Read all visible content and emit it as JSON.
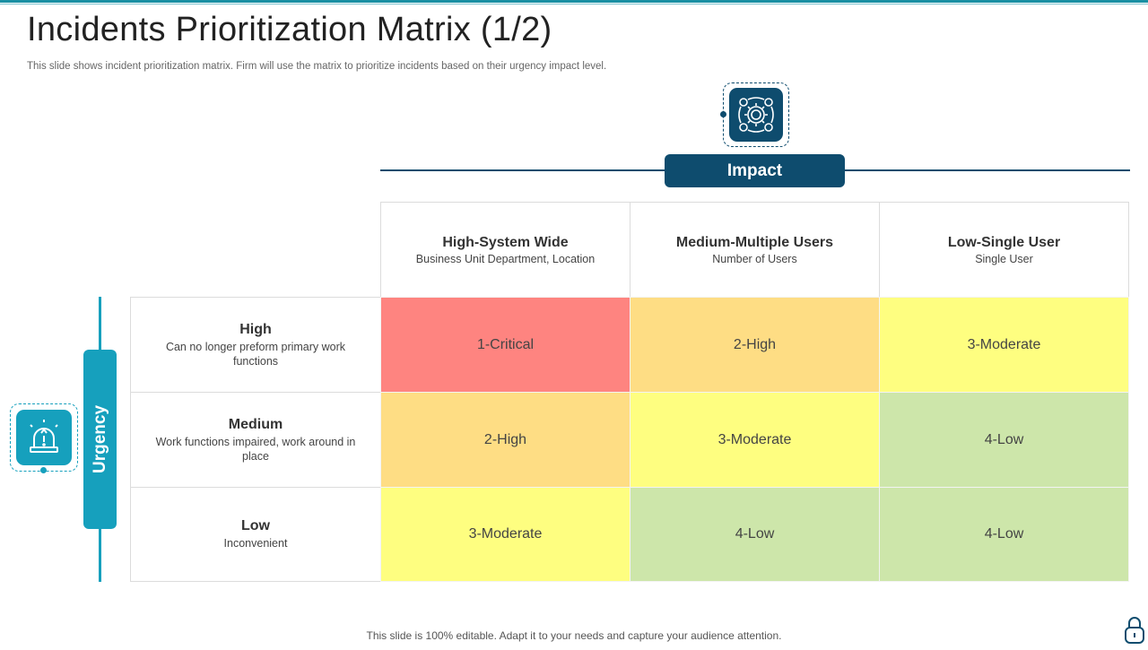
{
  "slide": {
    "title": "Incidents Prioritization Matrix (1/2)",
    "subtitle": "This slide shows incident prioritization matrix. Firm will use the matrix to prioritize incidents based on their urgency impact level.",
    "footer": "This slide is 100% editable. Adapt it to your  needs and capture your audience attention."
  },
  "impact": {
    "label": "Impact",
    "icon": "gears-process-icon",
    "color": "#0e4c6e"
  },
  "urgency": {
    "label": "Urgency",
    "icon": "alarm-siren-icon",
    "color": "#16a0bd"
  },
  "columns": [
    {
      "title": "High-System Wide",
      "desc": "Business Unit Department, Location"
    },
    {
      "title": "Medium-Multiple Users",
      "desc": "Number of Users"
    },
    {
      "title": "Low-Single User",
      "desc": "Single User"
    }
  ],
  "rows": [
    {
      "title": "High",
      "desc": "Can no longer preform primary work functions"
    },
    {
      "title": "Medium",
      "desc": "Work functions impaired, work around in place"
    },
    {
      "title": "Low",
      "desc": "Inconvenient"
    }
  ],
  "matrix": [
    [
      "1-Critical",
      "2-High",
      "3-Moderate"
    ],
    [
      "2-High",
      "3-Moderate",
      "4-Low"
    ],
    [
      "3-Moderate",
      "4-Low",
      "4-Low"
    ]
  ],
  "matrix_colors": [
    [
      "#fe8480",
      "#fedd84",
      "#fefe80"
    ],
    [
      "#fedd84",
      "#fefe80",
      "#cde6aa"
    ],
    [
      "#fefe80",
      "#cde6aa",
      "#cde6aa"
    ]
  ],
  "corner_icon": "lock-icon"
}
